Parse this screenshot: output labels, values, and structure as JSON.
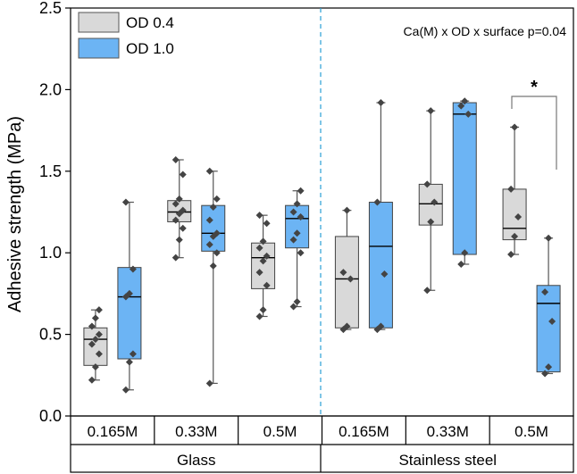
{
  "chart_data": {
    "type": "box",
    "title": "",
    "ylabel": "Adhesive strength (MPa)",
    "xlabel": "",
    "ylim": [
      0,
      2.5
    ],
    "yticks": [
      "0.0",
      "0.5",
      "1.0",
      "1.5",
      "2.0",
      "2.5"
    ],
    "ytick_values": [
      0,
      0.5,
      1.0,
      1.5,
      2.0,
      2.5
    ],
    "annotation": "Ca(M) x OD x surface p=0.04",
    "significance": "*",
    "legend": [
      {
        "name": "OD 0.4",
        "color": "#d9d9d9"
      },
      {
        "name": "OD 1.0",
        "color": "#6cb4f4"
      }
    ],
    "categories": [
      "0.165M",
      "0.33M",
      "0.5M",
      "0.165M",
      "0.33M",
      "0.5M"
    ],
    "groups": [
      "Glass",
      "Stainless steel"
    ],
    "boxes": [
      {
        "group": "Glass",
        "category": "0.165M",
        "series": "OD 0.4",
        "min": 0.22,
        "q1": 0.31,
        "median": 0.47,
        "q3": 0.54,
        "max": 0.65,
        "points": [
          0.22,
          0.3,
          0.38,
          0.44,
          0.47,
          0.5,
          0.55,
          0.6,
          0.65
        ]
      },
      {
        "group": "Glass",
        "category": "0.165M",
        "series": "OD 1.0",
        "min": 0.16,
        "q1": 0.35,
        "median": 0.73,
        "q3": 0.91,
        "max": 1.31,
        "points": [
          0.16,
          0.33,
          0.38,
          0.73,
          0.75,
          0.9,
          1.31
        ]
      },
      {
        "group": "Glass",
        "category": "0.33M",
        "series": "OD 0.4",
        "min": 0.97,
        "q1": 1.19,
        "median": 1.25,
        "q3": 1.32,
        "max": 1.57,
        "points": [
          0.97,
          1.08,
          1.15,
          1.2,
          1.24,
          1.26,
          1.3,
          1.33,
          1.48,
          1.57
        ]
      },
      {
        "group": "Glass",
        "category": "0.33M",
        "series": "OD 1.0",
        "min": 0.2,
        "q1": 1.01,
        "median": 1.12,
        "q3": 1.29,
        "max": 1.5,
        "points": [
          0.2,
          0.92,
          1.0,
          1.05,
          1.1,
          1.12,
          1.2,
          1.28,
          1.33,
          1.5
        ]
      },
      {
        "group": "Glass",
        "category": "0.5M",
        "series": "OD 0.4",
        "min": 0.61,
        "q1": 0.78,
        "median": 0.97,
        "q3": 1.06,
        "max": 1.23,
        "points": [
          0.61,
          0.65,
          0.8,
          0.88,
          0.95,
          0.98,
          1.03,
          1.07,
          1.18,
          1.23
        ]
      },
      {
        "group": "Glass",
        "category": "0.5M",
        "series": "OD 1.0",
        "min": 0.67,
        "q1": 1.03,
        "median": 1.21,
        "q3": 1.29,
        "max": 1.38,
        "points": [
          0.67,
          0.7,
          1.0,
          1.08,
          1.12,
          1.22,
          1.25,
          1.3,
          1.38
        ]
      },
      {
        "group": "Stainless steel",
        "category": "0.165M",
        "series": "OD 0.4",
        "min": 0.53,
        "q1": 0.54,
        "median": 0.84,
        "q3": 1.1,
        "max": 1.26,
        "points": [
          0.53,
          0.55,
          0.84,
          0.88,
          1.26
        ]
      },
      {
        "group": "Stainless steel",
        "category": "0.165M",
        "series": "OD 1.0",
        "min": 0.53,
        "q1": 0.54,
        "median": 1.04,
        "q3": 1.31,
        "max": 1.92,
        "points": [
          0.53,
          0.55,
          0.87,
          1.31,
          1.92
        ]
      },
      {
        "group": "Stainless steel",
        "category": "0.33M",
        "series": "OD 0.4",
        "min": 0.77,
        "q1": 1.17,
        "median": 1.3,
        "q3": 1.42,
        "max": 1.87,
        "points": [
          0.77,
          1.19,
          1.31,
          1.42,
          1.87
        ]
      },
      {
        "group": "Stainless steel",
        "category": "0.33M",
        "series": "OD 1.0",
        "min": 0.93,
        "q1": 0.99,
        "median": 1.85,
        "q3": 1.92,
        "max": 1.93,
        "points": [
          0.93,
          1.0,
          1.85,
          1.9,
          1.93
        ]
      },
      {
        "group": "Stainless steel",
        "category": "0.5M",
        "series": "OD 0.4",
        "min": 0.99,
        "q1": 1.08,
        "median": 1.15,
        "q3": 1.39,
        "max": 1.77,
        "points": [
          0.99,
          1.1,
          1.22,
          1.39,
          1.77
        ]
      },
      {
        "group": "Stainless steel",
        "category": "0.5M",
        "series": "OD 1.0",
        "min": 0.26,
        "q1": 0.27,
        "median": 0.69,
        "q3": 0.8,
        "max": 1.09,
        "points": [
          0.26,
          0.3,
          0.58,
          0.76,
          1.09
        ]
      }
    ]
  },
  "colors": {
    "od04": "#d9d9d9",
    "od10": "#6cb4f4",
    "divider": "#2a9fd6"
  }
}
